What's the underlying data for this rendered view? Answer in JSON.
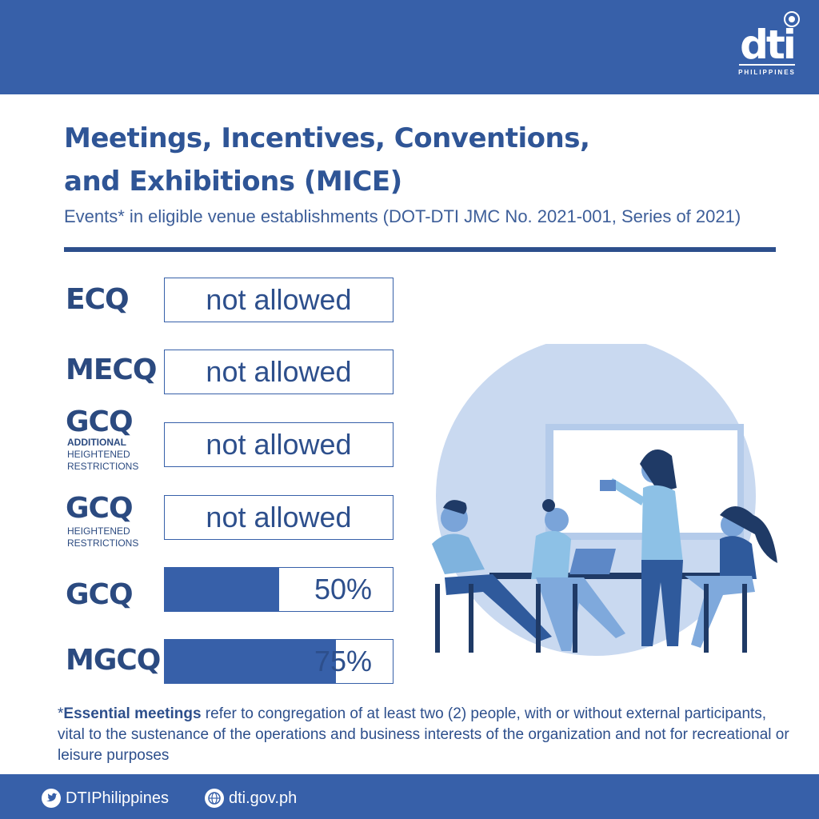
{
  "header": {
    "logo_text": "dti",
    "logo_sub": "PHILIPPINES"
  },
  "title_line1": "Meetings, Incentives, Conventions,",
  "title_line2": "and Exhibitions (MICE)",
  "subtitle": "Events* in eligible venue establishments (DOT-DTI JMC No. 2021-001, Series of 2021)",
  "rows": [
    {
      "label": "ECQ",
      "status": "not allowed"
    },
    {
      "label": "MECQ",
      "status": "not allowed"
    },
    {
      "label": "GCQ",
      "note_bold": "ADDITIONAL",
      "note": "HEIGHTENED",
      "note2": "RESTRICTIONS",
      "status": "not allowed"
    },
    {
      "label": "GCQ",
      "note": "HEIGHTENED",
      "note2": "RESTRICTIONS",
      "status": "not allowed"
    },
    {
      "label": "GCQ",
      "capacity": "50%",
      "capacity_fraction": 0.5
    },
    {
      "label": "MGCQ",
      "capacity": "75%",
      "capacity_fraction": 0.75
    }
  ],
  "footnote": {
    "star": "*",
    "bold": "Essential meetings",
    "text": " refer to congregation of at least two (2) people, with or without external participants, vital to the sustenance of the operations and business interests of the organization and not for recreational or leisure purposes"
  },
  "footer": {
    "twitter_handle": "DTIPhilippines",
    "website": "dti.gov.ph"
  },
  "colors": {
    "brand_blue": "#3760a9",
    "text_blue": "#2d4f8c",
    "illus_circle": "#c9d9f0"
  },
  "icons": [
    "twitter-icon",
    "globe-icon"
  ]
}
